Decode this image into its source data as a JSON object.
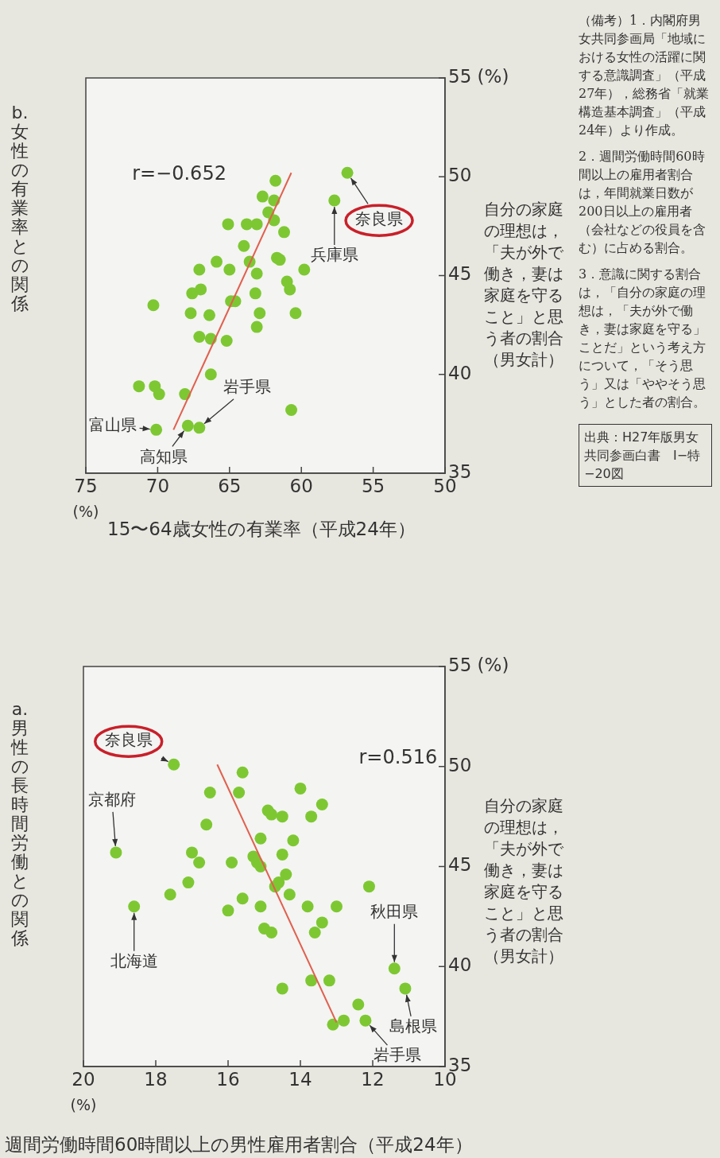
{
  "chart_data": [
    {
      "type": "scatter",
      "title": "a.　男性の長時間労働との関係",
      "ylabel": "自分の家庭の理想は，「夫が外で働き，妻は家庭を守ること」と思う者の割合（男女計）",
      "xlabel": "週間労働時間60時間以上の男性雇用者割合（平成24年）",
      "ylim": [
        35,
        55
      ],
      "yticks": [
        35,
        40,
        45,
        50,
        {
          "value": 55,
          "label": "55 (%)"
        }
      ],
      "xlim": [
        20,
        10
      ],
      "xticks": [
        20,
        18,
        16,
        14,
        12,
        10
      ],
      "marker": "circle",
      "series": [
        {
          "type": "line",
          "color": "#e0604e",
          "marker": "none",
          "x": [
            13.0,
            16.3
          ],
          "values": [
            37.2,
            50.1
          ]
        },
        {
          "type": "scatter",
          "color": "#7dc832",
          "values": [
            50.1,
            45.7,
            43.0,
            43.6,
            44.2,
            45.7,
            45.2,
            47.1,
            48.7,
            49.7,
            48.7,
            42.8,
            43.4,
            45.2,
            46.4,
            47.8,
            47.6,
            47.5,
            45.5,
            45.2,
            45.0,
            45.6,
            44.6,
            44.2,
            44.0,
            43.6,
            43.0,
            41.9,
            41.7,
            46.3,
            48.9,
            47.5,
            48.1,
            43.0,
            43.0,
            42.2,
            41.7,
            44.0,
            39.3,
            39.3,
            38.9,
            39.9,
            38.9,
            38.1,
            37.3,
            37.3,
            37.1
          ],
          "x": [
            17.5,
            19.1,
            18.6,
            17.6,
            17.1,
            17.0,
            16.8,
            16.6,
            16.5,
            15.6,
            15.7,
            16.0,
            15.6,
            15.9,
            15.1,
            14.9,
            14.8,
            14.5,
            15.3,
            15.2,
            15.1,
            14.5,
            14.4,
            14.6,
            14.7,
            14.3,
            15.1,
            15.0,
            14.8,
            14.2,
            14.0,
            13.7,
            13.4,
            13.8,
            13.0,
            13.4,
            13.6,
            12.1,
            13.7,
            13.2,
            14.5,
            11.4,
            11.1,
            12.4,
            12.2,
            12.8,
            13.1
          ]
        }
      ],
      "annotations": [
        "r=0.516",
        "(%)",
        {
          "text": "奈良県",
          "x": 17.5,
          "y": 50.1
        },
        {
          "text": "京都府",
          "x": 19.1,
          "y": 45.7
        },
        {
          "text": "北海道",
          "x": 18.6,
          "y": 43.0
        },
        {
          "text": "秋田県",
          "x": 11.4,
          "y": 39.9
        },
        {
          "text": "島根県",
          "x": 11.1,
          "y": 38.9
        },
        {
          "text": "岩手県",
          "x": 12.2,
          "y": 37.3
        },
        "（備考）1．内閣府男女共同参画局「地域における女性の活躍に関する意識調査」（平成27年），総務省「就業構造基本調査」（平成24年）より作成。",
        "2．週間労働時間60時間以上の雇用者割合は，年間就業日数が200日以上の雇用者（会社などの役員を含む）に占める割合。",
        "3．意識に関する割合は，「自分の家庭の理想は，「夫が外で働き，妻は家庭を守る」ことだ」という考え方について，「そう思う」又は「ややそう思う」とした者の割合。",
        "出典：H27年版男女共同参画白書　Ⅰ−特−20図"
      ]
    },
    {
      "type": "scatter",
      "title": "b.　女性の有業率との関係",
      "ylabel": "自分の家庭の理想は，「夫が外で働き，妻は家庭を守ること」と思う者の割合（男女計）",
      "xlabel": "15〜64歳女性の有業率（平成24年）",
      "ylim": [
        35,
        55
      ],
      "yticks": [
        35,
        40,
        45,
        50,
        {
          "value": 55,
          "label": "55 (%)"
        }
      ],
      "xlim": [
        75,
        50
      ],
      "xticks": [
        75,
        70,
        65,
        60,
        55,
        50
      ],
      "marker": "circle",
      "series": [
        {
          "type": "line",
          "color": "#e0604e",
          "marker": "none",
          "x": [
            68.9,
            60.7
          ],
          "values": [
            37.2,
            50.2
          ]
        },
        {
          "type": "scatter",
          "color": "#7dc832",
          "values": [
            37.2,
            39.4,
            39.4,
            39.0,
            43.5,
            37.4,
            37.3,
            39.0,
            40.0,
            41.9,
            41.8,
            41.7,
            43.1,
            43.0,
            44.1,
            44.3,
            45.3,
            45.7,
            45.3,
            43.7,
            43.7,
            47.6,
            47.6,
            47.6,
            46.5,
            45.7,
            45.1,
            44.1,
            43.1,
            42.4,
            49.0,
            48.8,
            48.2,
            47.8,
            49.8,
            47.2,
            45.9,
            45.8,
            45.3,
            44.7,
            44.3,
            43.1,
            38.2,
            48.8,
            50.2
          ],
          "x": [
            70.1,
            71.3,
            70.2,
            69.9,
            70.3,
            67.9,
            67.1,
            68.1,
            66.3,
            67.1,
            66.3,
            65.2,
            67.7,
            66.4,
            67.6,
            67.0,
            67.1,
            65.9,
            65.0,
            64.9,
            64.6,
            65.1,
            63.8,
            63.1,
            64.0,
            63.6,
            63.1,
            63.2,
            62.9,
            63.1,
            62.7,
            61.9,
            62.3,
            61.9,
            61.8,
            61.2,
            61.7,
            61.5,
            59.8,
            61.0,
            60.8,
            60.4,
            60.7,
            57.7,
            56.8
          ]
        }
      ],
      "annotations": [
        "r=−0.652",
        "(%)",
        {
          "text": "富山県",
          "x": 70.1,
          "y": 37.2
        },
        {
          "text": "高知県",
          "x": 67.9,
          "y": 37.4
        },
        {
          "text": "岩手県",
          "x": 67.1,
          "y": 37.3
        },
        {
          "text": "兵庫県",
          "x": 57.7,
          "y": 48.8
        },
        {
          "text": "奈良県",
          "x": 56.8,
          "y": 50.2
        }
      ]
    }
  ]
}
